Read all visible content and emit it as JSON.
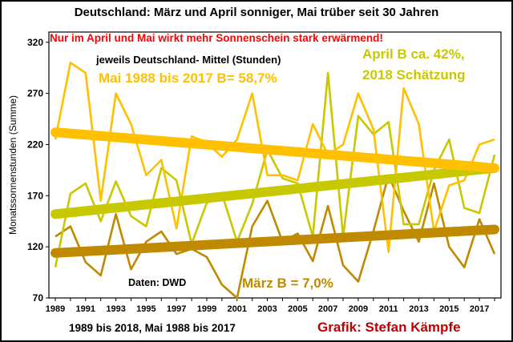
{
  "chart_data": {
    "type": "line",
    "title": "Deutschland: März und April sonniger, Mai trüber seit 30 Jahren",
    "subtitle": "Nur im April und Mai wirkt mehr Sonnenschein stark erwärmend!",
    "ylabel": "Monatssonnenstunden (Summe)",
    "xlabel": "",
    "x": [
      1989,
      1990,
      1991,
      1992,
      1993,
      1994,
      1995,
      1996,
      1997,
      1998,
      1999,
      2000,
      2001,
      2002,
      2003,
      2004,
      2005,
      2006,
      2007,
      2008,
      2009,
      2010,
      2011,
      2012,
      2013,
      2014,
      2015,
      2016,
      2017,
      2018
    ],
    "xticks": [
      "1989",
      "1991",
      "1993",
      "1995",
      "1997",
      "1999",
      "2001",
      "2003",
      "2005",
      "2007",
      "2009",
      "2011",
      "2013",
      "2015",
      "2017"
    ],
    "ylim": [
      70,
      330
    ],
    "yticks": [
      "70",
      "120",
      "170",
      "220",
      "270",
      "320"
    ],
    "grid": false,
    "colors": {
      "mai": "#ffc000",
      "april": "#c8c800",
      "maerz": "#c08a00",
      "title_red": "#ff0000",
      "credit_red": "#c00000"
    },
    "series": [
      {
        "key": "mai",
        "values": [
          225,
          300,
          290,
          165,
          270,
          240,
          190,
          205,
          138,
          228,
          222,
          208,
          225,
          270,
          190,
          190,
          185,
          240,
          210,
          220,
          270,
          235,
          115,
          275,
          240,
          135,
          180,
          185,
          220,
          225
        ]
      },
      {
        "key": "april",
        "values": [
          100,
          172,
          182,
          145,
          184,
          150,
          140,
          197,
          185,
          123,
          163,
          172,
          125,
          162,
          215,
          187,
          182,
          130,
          290,
          130,
          248,
          230,
          242,
          142,
          142,
          195,
          225,
          158,
          153,
          210
        ]
      },
      {
        "key": "maerz",
        "values": [
          130,
          140,
          105,
          92,
          152,
          98,
          125,
          135,
          113,
          118,
          110,
          83,
          70,
          140,
          165,
          125,
          133,
          106,
          160,
          102,
          86,
          135,
          190,
          155,
          125,
          182,
          120,
          100,
          147,
          113
        ]
      }
    ],
    "trends": [
      {
        "key": "mai",
        "from": 232,
        "to": 197
      },
      {
        "key": "april",
        "from": 152,
        "to": 197
      },
      {
        "key": "maerz",
        "from": 114,
        "to": 137
      }
    ],
    "annotations": {
      "mittel": "jeweils Deutschland- Mittel (Stunden)",
      "mai": "Mai 1988 bis 2017 B= 58,7%",
      "april_1": "April B ca. 42%,",
      "april_2": "2018 Schätzung",
      "maerz": "März B = 7,0%",
      "daten": "Daten: DWD",
      "zeitraum": "1989 bis 2018, Mai 1988 bis 2017",
      "grafik": "Grafik: Stefan Kämpfe"
    }
  }
}
